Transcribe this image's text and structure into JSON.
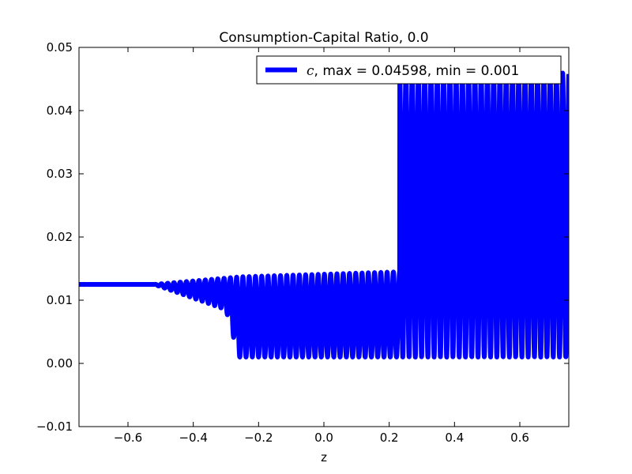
{
  "chart_data": {
    "type": "line",
    "title": "Consumption-Capital Ratio, 0.0",
    "xlabel": "z",
    "ylabel": "",
    "xlim": [
      -0.75,
      0.75
    ],
    "ylim": [
      -0.01,
      0.05
    ],
    "xticks": [
      -0.6,
      -0.4,
      -0.2,
      0.0,
      0.2,
      0.4,
      0.6
    ],
    "xtick_labels": [
      "−0.6",
      "−0.4",
      "−0.2",
      "0.0",
      "0.2",
      "0.4",
      "0.6"
    ],
    "yticks": [
      -0.01,
      0.0,
      0.01,
      0.02,
      0.03,
      0.04,
      0.05
    ],
    "ytick_labels": [
      "−0.01",
      "0.00",
      "0.01",
      "0.02",
      "0.03",
      "0.04",
      "0.05"
    ],
    "grid": false,
    "legend_position": "top-right",
    "series": [
      {
        "name": "c",
        "color": "#0000ff",
        "legend_symbol": "c",
        "legend_text": ", max = 0.04598, min = 0.001",
        "regions": [
          {
            "x_start": -0.75,
            "x_end": -0.52,
            "min": 0.0125,
            "max": 0.0125
          },
          {
            "x_start": -0.52,
            "x_end": -0.3,
            "min_start": 0.0125,
            "min_end": 0.0085,
            "max_start": 0.0125,
            "max_end": 0.0135
          },
          {
            "x_start": -0.3,
            "x_end": -0.26,
            "min_start": 0.0085,
            "min_end": 0.001,
            "max_start": 0.0135,
            "max_end": 0.0137
          },
          {
            "x_start": -0.26,
            "x_end": 0.232,
            "min": 0.001,
            "max_start": 0.0137,
            "max_end": 0.0145
          },
          {
            "x_start": 0.232,
            "x_end": 0.75,
            "min": 0.001,
            "max": 0.04598
          }
        ],
        "max": 0.04598,
        "min": 0.001
      }
    ]
  }
}
